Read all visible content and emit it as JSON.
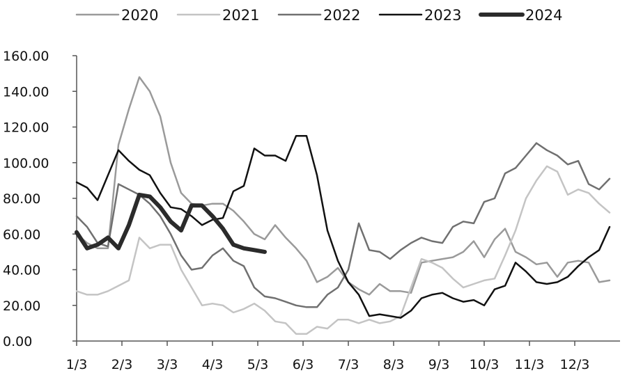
{
  "chart_data": {
    "type": "line",
    "title": "",
    "xlabel": "",
    "ylabel": "",
    "ylim": [
      0,
      160
    ],
    "y_ticks": [
      "0.00",
      "20.00",
      "40.00",
      "60.00",
      "80.00",
      "100.00",
      "120.00",
      "140.00",
      "160.00"
    ],
    "x_tick_labels": [
      "1/3",
      "2/3",
      "3/3",
      "4/3",
      "5/3",
      "6/3",
      "7/3",
      "8/3",
      "9/3",
      "10/3",
      "11/3",
      "12/3"
    ],
    "x_unit": "week index (1/3 = week 0, ~4.33 weeks per month)",
    "xlim": [
      0,
      52
    ],
    "grid": false,
    "legend_position": "top",
    "series": [
      {
        "name": "2020",
        "color": "#9a9a9a",
        "width": 2.5,
        "values": [
          [
            0,
            60
          ],
          [
            1,
            55
          ],
          [
            2,
            52
          ],
          [
            3,
            52
          ],
          [
            4,
            110
          ],
          [
            5,
            130
          ],
          [
            6,
            148
          ],
          [
            7,
            140
          ],
          [
            8,
            126
          ],
          [
            9,
            100
          ],
          [
            10,
            83
          ],
          [
            11,
            77
          ],
          [
            12,
            76
          ],
          [
            13,
            77
          ],
          [
            14,
            77
          ],
          [
            15,
            73
          ],
          [
            16,
            67
          ],
          [
            17,
            60
          ],
          [
            18,
            57
          ],
          [
            19,
            65
          ],
          [
            20,
            58
          ],
          [
            21,
            52
          ],
          [
            22,
            45
          ],
          [
            23,
            33
          ],
          [
            24,
            36
          ],
          [
            25,
            41
          ],
          [
            26,
            33
          ],
          [
            27,
            29
          ],
          [
            28,
            26
          ],
          [
            29,
            32
          ],
          [
            30,
            28
          ],
          [
            31,
            28
          ],
          [
            32,
            27
          ],
          [
            33,
            44
          ],
          [
            34,
            45
          ],
          [
            35,
            46
          ],
          [
            36,
            47
          ],
          [
            37,
            50
          ],
          [
            38,
            56
          ],
          [
            39,
            47
          ],
          [
            40,
            57
          ],
          [
            41,
            63
          ],
          [
            42,
            50
          ],
          [
            43,
            47
          ],
          [
            44,
            43
          ],
          [
            45,
            44
          ],
          [
            46,
            36
          ],
          [
            47,
            44
          ],
          [
            48,
            45
          ],
          [
            49,
            44
          ],
          [
            50,
            33
          ],
          [
            51,
            34
          ]
        ]
      },
      {
        "name": "2021",
        "color": "#c4c4c4",
        "width": 2.5,
        "values": [
          [
            0,
            28
          ],
          [
            1,
            26
          ],
          [
            2,
            26
          ],
          [
            3,
            28
          ],
          [
            4,
            31
          ],
          [
            5,
            34
          ],
          [
            6,
            58
          ],
          [
            7,
            52
          ],
          [
            8,
            54
          ],
          [
            9,
            54
          ],
          [
            10,
            40
          ],
          [
            11,
            30
          ],
          [
            12,
            20
          ],
          [
            13,
            21
          ],
          [
            14,
            20
          ],
          [
            15,
            16
          ],
          [
            16,
            18
          ],
          [
            17,
            21
          ],
          [
            18,
            17
          ],
          [
            19,
            11
          ],
          [
            20,
            10
          ],
          [
            21,
            4
          ],
          [
            22,
            4
          ],
          [
            23,
            8
          ],
          [
            24,
            7
          ],
          [
            25,
            12
          ],
          [
            26,
            12
          ],
          [
            27,
            10
          ],
          [
            28,
            12
          ],
          [
            29,
            10
          ],
          [
            30,
            11
          ],
          [
            31,
            14
          ],
          [
            32,
            30
          ],
          [
            33,
            46
          ],
          [
            34,
            44
          ],
          [
            35,
            41
          ],
          [
            36,
            35
          ],
          [
            37,
            30
          ],
          [
            38,
            32
          ],
          [
            39,
            34
          ],
          [
            40,
            35
          ],
          [
            41,
            48
          ],
          [
            42,
            62
          ],
          [
            43,
            80
          ],
          [
            44,
            90
          ],
          [
            45,
            98
          ],
          [
            46,
            95
          ],
          [
            47,
            82
          ],
          [
            48,
            85
          ],
          [
            49,
            83
          ],
          [
            50,
            77
          ],
          [
            51,
            72
          ]
        ]
      },
      {
        "name": "2022",
        "color": "#707070",
        "width": 2.5,
        "values": [
          [
            0,
            70
          ],
          [
            1,
            64
          ],
          [
            2,
            55
          ],
          [
            3,
            53
          ],
          [
            4,
            88
          ],
          [
            5,
            85
          ],
          [
            6,
            82
          ],
          [
            7,
            77
          ],
          [
            8,
            70
          ],
          [
            9,
            60
          ],
          [
            10,
            48
          ],
          [
            11,
            40
          ],
          [
            12,
            41
          ],
          [
            13,
            48
          ],
          [
            14,
            52
          ],
          [
            15,
            45
          ],
          [
            16,
            42
          ],
          [
            17,
            30
          ],
          [
            18,
            25
          ],
          [
            19,
            24
          ],
          [
            20,
            22
          ],
          [
            21,
            20
          ],
          [
            22,
            19
          ],
          [
            23,
            19
          ],
          [
            24,
            26
          ],
          [
            25,
            30
          ],
          [
            26,
            40
          ],
          [
            27,
            66
          ],
          [
            28,
            51
          ],
          [
            29,
            50
          ],
          [
            30,
            46
          ],
          [
            31,
            51
          ],
          [
            32,
            55
          ],
          [
            33,
            58
          ],
          [
            34,
            56
          ],
          [
            35,
            55
          ],
          [
            36,
            64
          ],
          [
            37,
            67
          ],
          [
            38,
            66
          ],
          [
            39,
            78
          ],
          [
            40,
            80
          ],
          [
            41,
            94
          ],
          [
            42,
            97
          ],
          [
            43,
            104
          ],
          [
            44,
            111
          ],
          [
            45,
            107
          ],
          [
            46,
            104
          ],
          [
            47,
            99
          ],
          [
            48,
            101
          ],
          [
            49,
            88
          ],
          [
            50,
            85
          ],
          [
            51,
            91
          ]
        ]
      },
      {
        "name": "2023",
        "color": "#111111",
        "width": 2.5,
        "values": [
          [
            0,
            89
          ],
          [
            1,
            86
          ],
          [
            2,
            79
          ],
          [
            3,
            93
          ],
          [
            4,
            107
          ],
          [
            5,
            101
          ],
          [
            6,
            96
          ],
          [
            7,
            93
          ],
          [
            8,
            83
          ],
          [
            9,
            75
          ],
          [
            10,
            74
          ],
          [
            11,
            70
          ],
          [
            12,
            65
          ],
          [
            13,
            68
          ],
          [
            14,
            69
          ],
          [
            15,
            84
          ],
          [
            16,
            87
          ],
          [
            17,
            108
          ],
          [
            18,
            104
          ],
          [
            19,
            104
          ],
          [
            20,
            101
          ],
          [
            21,
            115
          ],
          [
            22,
            115
          ],
          [
            23,
            93
          ],
          [
            24,
            62
          ],
          [
            25,
            45
          ],
          [
            26,
            33
          ],
          [
            27,
            26
          ],
          [
            28,
            14
          ],
          [
            29,
            15
          ],
          [
            30,
            14
          ],
          [
            31,
            13
          ],
          [
            32,
            17
          ],
          [
            33,
            24
          ],
          [
            34,
            26
          ],
          [
            35,
            27
          ],
          [
            36,
            24
          ],
          [
            37,
            22
          ],
          [
            38,
            23
          ],
          [
            39,
            20
          ],
          [
            40,
            29
          ],
          [
            41,
            31
          ],
          [
            42,
            44
          ],
          [
            43,
            39
          ],
          [
            44,
            33
          ],
          [
            45,
            32
          ],
          [
            46,
            33
          ],
          [
            47,
            36
          ],
          [
            48,
            42
          ],
          [
            49,
            47
          ],
          [
            50,
            51
          ],
          [
            51,
            64
          ]
        ]
      },
      {
        "name": "2024",
        "color": "#2b2b2b",
        "width": 6,
        "values": [
          [
            0,
            61
          ],
          [
            1,
            52
          ],
          [
            2,
            54
          ],
          [
            3,
            58
          ],
          [
            4,
            52
          ],
          [
            5,
            65
          ],
          [
            6,
            82
          ],
          [
            7,
            81
          ],
          [
            8,
            75
          ],
          [
            9,
            67
          ],
          [
            10,
            62
          ],
          [
            11,
            76
          ],
          [
            12,
            76
          ],
          [
            13,
            70
          ],
          [
            14,
            63
          ],
          [
            15,
            54
          ],
          [
            16,
            52
          ],
          [
            17,
            51
          ],
          [
            18,
            50
          ]
        ]
      }
    ]
  }
}
